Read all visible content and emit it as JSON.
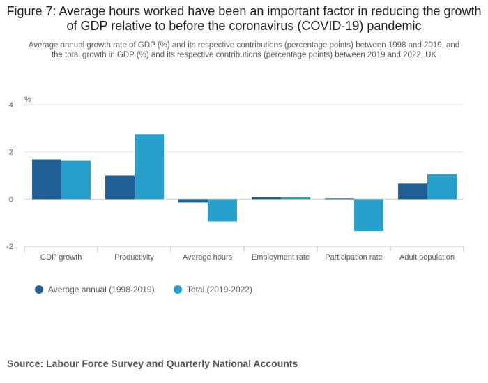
{
  "header": {
    "title": "Figure 7: Average hours worked have been an important factor in reducing the growth of GDP relative to before the coronavirus (COVID-19) pandemic",
    "subtitle": "Average annual growth rate of GDP (%) and its respective contributions (percentage points) between 1998 and 2019, and the total growth in GDP (%) and its respective contributions (percentage points) between 2019 and 2022, UK"
  },
  "chart_data": {
    "type": "bar",
    "title": "Figure 7: Average hours worked have been an important factor in reducing the growth of GDP relative to before the coronavirus (COVID-19) pandemic",
    "ylabel": "%",
    "xlabel": "",
    "categories": [
      "GDP growth",
      "Productivity",
      "Average hours",
      "Employment rate",
      "Participation rate",
      "Adult population"
    ],
    "series": [
      {
        "name": "Average annual (1998-2019)",
        "color": "#206095",
        "values": [
          1.68,
          1.0,
          -0.15,
          0.08,
          0.03,
          0.65
        ]
      },
      {
        "name": "Total (2019-2022)",
        "color": "#27a0cc",
        "values": [
          1.62,
          2.75,
          -0.95,
          0.08,
          -1.35,
          1.05
        ]
      }
    ],
    "ylim": [
      -2,
      4
    ],
    "yticks": [
      -2,
      0,
      2,
      4
    ],
    "grid": true,
    "legend_position": "bottom-left"
  },
  "source": "Source: Labour Force Survey and Quarterly National Accounts"
}
